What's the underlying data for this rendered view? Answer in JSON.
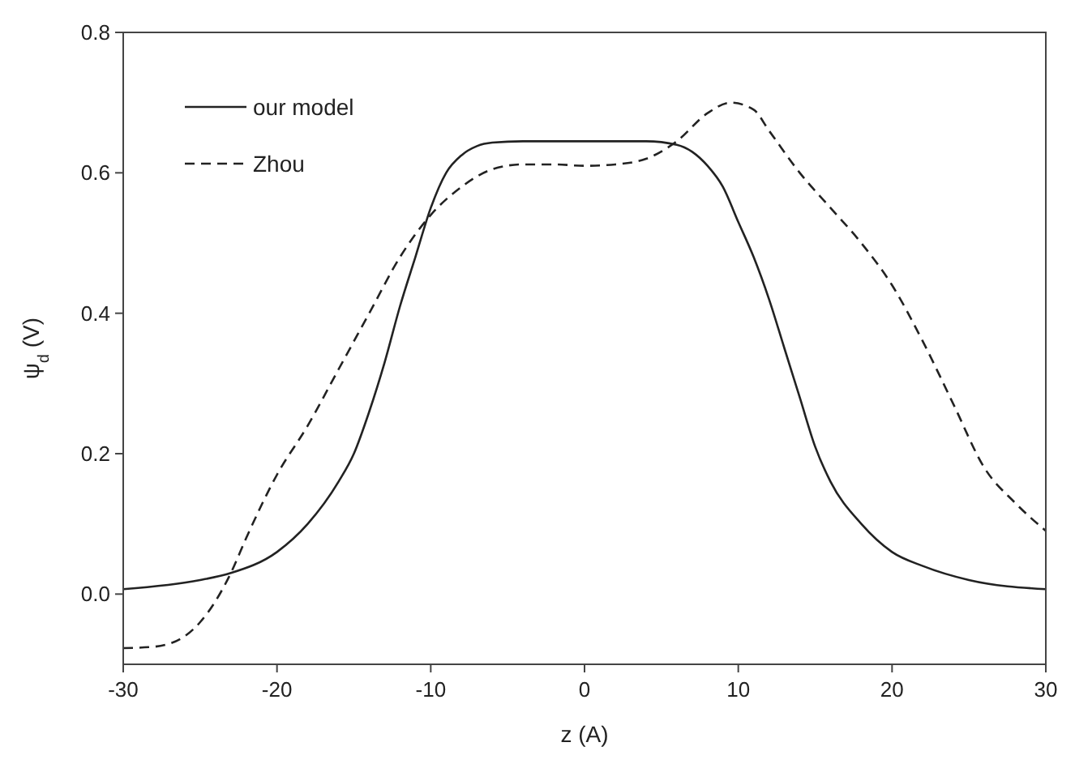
{
  "chart_data": {
    "type": "line",
    "xlabel": "z (A)",
    "ylabel": "ψ$_{d}$ (V)",
    "xlim": [
      -30,
      30
    ],
    "ylim": [
      -0.1,
      0.8
    ],
    "xticks": [
      -30,
      -20,
      -10,
      0,
      10,
      20,
      30
    ],
    "yticks": [
      {
        "value": 0,
        "label": "0.0"
      },
      {
        "value": 0.2,
        "label": "0.2"
      },
      {
        "value": 0.4,
        "label": "0.4"
      },
      {
        "value": 0.6,
        "label": "0.6"
      },
      {
        "value": 0.8,
        "label": "0.8"
      }
    ],
    "legend": "top left",
    "grid": false,
    "series": [
      {
        "name": "our model",
        "color": "#222222",
        "line_style": "solid",
        "x": [
          -30,
          -25,
          -23,
          -20,
          -18,
          -16,
          -15,
          -14,
          -13,
          -12,
          -11,
          -10,
          -9,
          -8,
          -7,
          -6,
          -4,
          0,
          4,
          6,
          7,
          8,
          9,
          10,
          11,
          12,
          13,
          14,
          15,
          16,
          18,
          20,
          22,
          25,
          30
        ],
        "values": [
          0.007,
          0.02,
          0.03,
          0.06,
          0.1,
          0.16,
          0.2,
          0.26,
          0.33,
          0.41,
          0.48,
          0.55,
          0.6,
          0.625,
          0.638,
          0.643,
          0.645,
          0.645,
          0.645,
          0.64,
          0.63,
          0.61,
          0.58,
          0.53,
          0.48,
          0.42,
          0.35,
          0.28,
          0.21,
          0.16,
          0.1,
          0.06,
          0.04,
          0.02,
          0.007
        ]
      },
      {
        "name": "Zhou",
        "color": "#222222",
        "line_style": "dashed",
        "x": [
          -30,
          -28,
          -26,
          -25,
          -24,
          -23,
          -22,
          -20,
          -18,
          -16,
          -14,
          -12,
          -10,
          -8,
          -6,
          -4,
          -2,
          0,
          2,
          4,
          6,
          8,
          9.5,
          11,
          12,
          14,
          16,
          18,
          20,
          22,
          24,
          26,
          28,
          30
        ],
        "values": [
          -0.077,
          -0.075,
          -0.06,
          -0.04,
          -0.01,
          0.03,
          0.08,
          0.17,
          0.24,
          0.32,
          0.4,
          0.48,
          0.54,
          0.58,
          0.605,
          0.612,
          0.612,
          0.61,
          0.612,
          0.62,
          0.645,
          0.685,
          0.7,
          0.69,
          0.66,
          0.6,
          0.55,
          0.5,
          0.44,
          0.36,
          0.27,
          0.18,
          0.13,
          0.09
        ]
      }
    ]
  }
}
